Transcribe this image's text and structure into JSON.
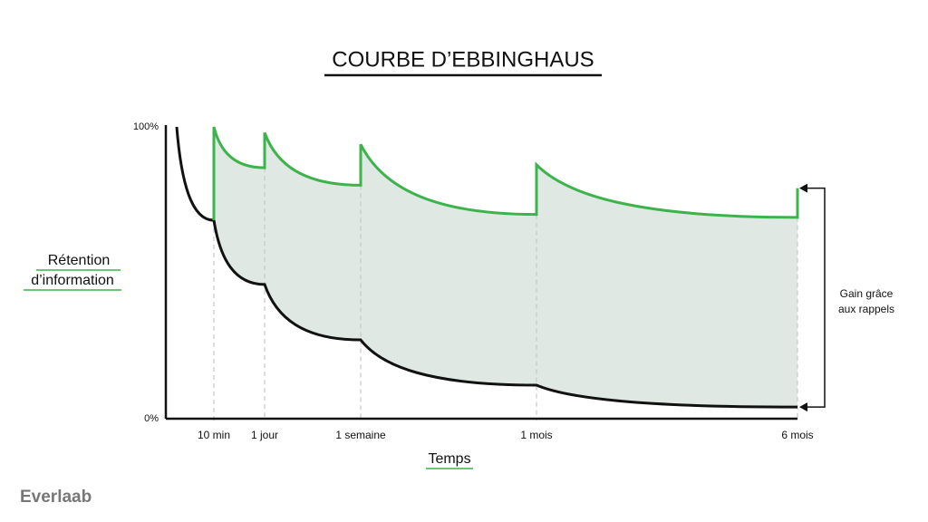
{
  "brand": "Everlaab",
  "chart_data": {
    "type": "line",
    "title": "COURBE D’EBBINGHAUS",
    "ylabel": [
      "Rétention",
      "d’information"
    ],
    "xlabel": "Temps",
    "annotation": [
      "Gain grâce",
      "aux rappels"
    ],
    "categories": [
      null,
      "10 min",
      "1 jour",
      "1 semaine",
      "1 mois",
      "6 mois"
    ],
    "ylim": [
      0,
      100
    ],
    "yticks": [
      {
        "value": 0,
        "label": "0%"
      },
      {
        "value": 100,
        "label": "100%"
      }
    ],
    "series": [
      {
        "color": "#111111",
        "values": [
          100,
          68,
          46,
          27,
          11.5,
          4
        ]
      },
      {
        "color": "#3cb44b",
        "values": [
          null,
          100,
          98,
          94,
          87,
          79
        ],
        "before_values": [
          null,
          68,
          86,
          80,
          70,
          69
        ]
      }
    ],
    "area_color": "#dfe8e3"
  }
}
